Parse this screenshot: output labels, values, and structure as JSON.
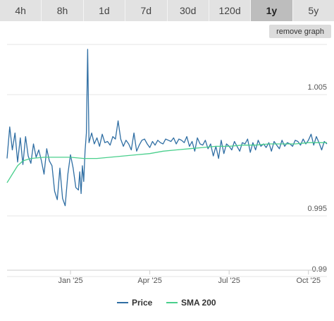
{
  "toolbar": {
    "ranges": [
      "4h",
      "8h",
      "1d",
      "7d",
      "30d",
      "120d",
      "1y",
      "5y"
    ],
    "active_index": 6,
    "remove_graph_label": "remove graph"
  },
  "colors": {
    "price": "#2f6ea3",
    "sma": "#49cf8c",
    "grid": "#e6e6e6",
    "axis": "#cccccc"
  },
  "chart_data": {
    "type": "line",
    "x_tick_labels": [
      "Jan '25",
      "Apr '25",
      "Jul '25",
      "Oct '25"
    ],
    "x_tick_positions": [
      2.5,
      5.5,
      8.5,
      11.5
    ],
    "xlim": [
      0.1,
      12.2
    ],
    "y_tick_labels": [
      "1.005",
      "0.995",
      "0.99"
    ],
    "y_tick_values": [
      1.005,
      0.995,
      0.99
    ],
    "ylim": [
      0.99,
      1.0085
    ],
    "grid": "horizontal",
    "legend_position": "bottom-center",
    "series": [
      {
        "name": "Price",
        "x": [
          0.1,
          0.2,
          0.3,
          0.4,
          0.5,
          0.6,
          0.7,
          0.8,
          0.9,
          1.0,
          1.1,
          1.2,
          1.3,
          1.4,
          1.5,
          1.6,
          1.7,
          1.8,
          1.9,
          2.0,
          2.1,
          2.2,
          2.3,
          2.4,
          2.5,
          2.6,
          2.7,
          2.8,
          2.85,
          2.9,
          2.95,
          3.0,
          3.05,
          3.1,
          3.15,
          3.2,
          3.3,
          3.4,
          3.5,
          3.6,
          3.7,
          3.8,
          3.9,
          4.0,
          4.1,
          4.2,
          4.3,
          4.4,
          4.5,
          4.6,
          4.7,
          4.8,
          4.9,
          5.0,
          5.1,
          5.2,
          5.3,
          5.4,
          5.5,
          5.6,
          5.7,
          5.8,
          5.9,
          6.0,
          6.1,
          6.2,
          6.3,
          6.4,
          6.5,
          6.6,
          6.7,
          6.8,
          6.9,
          7.0,
          7.1,
          7.2,
          7.3,
          7.4,
          7.5,
          7.6,
          7.7,
          7.8,
          7.9,
          8.0,
          8.1,
          8.2,
          8.3,
          8.4,
          8.5,
          8.6,
          8.7,
          8.8,
          8.9,
          9.0,
          9.1,
          9.2,
          9.3,
          9.4,
          9.5,
          9.6,
          9.7,
          9.8,
          9.9,
          10.0,
          10.1,
          10.2,
          10.3,
          10.4,
          10.5,
          10.6,
          10.7,
          10.8,
          10.9,
          11.0,
          11.1,
          11.2,
          11.3,
          11.4,
          11.5,
          11.6,
          11.7,
          11.8,
          11.9,
          12.0,
          12.1,
          12.2
        ],
        "values": [
          0.9991,
          1.0017,
          0.9998,
          1.0012,
          0.9988,
          1.0008,
          0.9986,
          1.0009,
          0.9993,
          0.9987,
          1.0003,
          0.9992,
          0.9998,
          0.9989,
          0.9978,
          0.9999,
          0.9989,
          0.9985,
          0.9964,
          0.9957,
          0.9983,
          0.9958,
          0.9952,
          0.9978,
          0.9994,
          0.9983,
          0.9967,
          0.9965,
          0.998,
          0.9962,
          0.9985,
          0.9972,
          0.9997,
          1.0012,
          1.0081,
          1.0004,
          1.0012,
          1.0003,
          1.0008,
          1.0001,
          1.0011,
          1.0004,
          1.0005,
          1.0002,
          1.0009,
          1.0007,
          1.0022,
          1.0007,
          1.0001,
          1.0006,
          1.0003,
          0.9998,
          1.0012,
          0.9997,
          1.0002,
          1.0006,
          1.0007,
          1.0003,
          1.0,
          1.0005,
          1.0002,
          1.0006,
          1.0004,
          1.0003,
          1.0007,
          1.0006,
          1.0005,
          1.0008,
          1.0003,
          1.0007,
          1.0006,
          1.0004,
          1.0009,
          1.0001,
          1.0005,
          0.9997,
          1.0008,
          1.0003,
          1.0002,
          1.0006,
          0.9999,
          1.0003,
          0.9993,
          1.0001,
          0.9991,
          1.0006,
          0.9995,
          1.0003,
          1.0001,
          0.9998,
          1.0005,
          1.0001,
          0.9997,
          1.0004,
          1.0003,
          1.0007,
          0.9996,
          1.0004,
          0.9998,
          1.0006,
          1.0001,
          1.0003,
          1.0,
          1.0004,
          0.9997,
          1.0005,
          1.0002,
          0.9999,
          1.0006,
          1.0001,
          1.0004,
          1.0003,
          1.0001,
          1.0006,
          1.0005,
          1.0002,
          1.0007,
          1.0003,
          1.0006,
          1.0011,
          1.0002,
          1.0009,
          1.0004,
          0.9998,
          1.0005,
          1.0003
        ]
      },
      {
        "name": "SMA 200",
        "x": [
          0.1,
          0.3,
          0.5,
          0.7,
          1.0,
          1.5,
          2.0,
          2.5,
          3.0,
          3.2,
          3.5,
          4.0,
          4.5,
          5.0,
          5.5,
          6.0,
          6.5,
          7.0,
          7.5,
          8.0,
          8.5,
          9.0,
          9.5,
          10.0,
          10.5,
          11.0,
          11.5,
          12.0,
          12.2
        ],
        "values": [
          0.9971,
          0.9978,
          0.9985,
          0.9989,
          0.9991,
          0.9992,
          0.9992,
          0.9992,
          0.9991,
          0.9991,
          0.9991,
          0.9992,
          0.9993,
          0.9994,
          0.9995,
          0.9997,
          0.9998,
          0.9999,
          1.0,
          1.0001,
          1.0001,
          1.0002,
          1.0002,
          1.0003,
          1.0003,
          1.0003,
          1.0004,
          1.0004,
          1.0004
        ]
      }
    ]
  }
}
